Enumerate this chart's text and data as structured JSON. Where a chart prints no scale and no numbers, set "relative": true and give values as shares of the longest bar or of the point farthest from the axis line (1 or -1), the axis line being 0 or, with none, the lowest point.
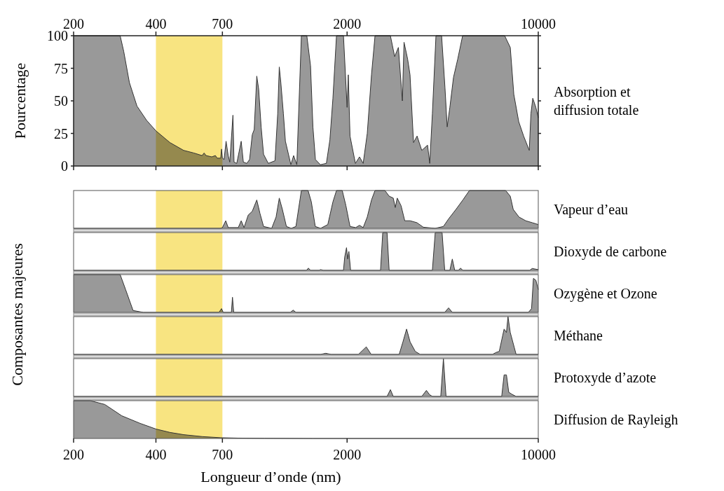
{
  "chart_data": [
    {
      "type": "area",
      "title": "Absorption et diffusion totale",
      "ylabel": "Pourcentage",
      "log": "x",
      "xlim": [
        200,
        10000
      ],
      "xticks": [
        200,
        400,
        700,
        2000,
        10000
      ],
      "ylim": [
        0,
        100
      ],
      "yticks": [
        0,
        25,
        50,
        75,
        100
      ],
      "bands": [
        {
          "axis": "x",
          "from": 400,
          "to": 700,
          "color": "#f5d63d"
        }
      ],
      "series": [
        {
          "color": "#999999",
          "x": [
            200,
            296,
            305,
            320,
            341,
            370,
            400,
            450,
            505,
            550,
            590,
            600,
            610,
            640,
            660,
            670,
            690,
            695,
            700,
            710,
            722,
            735,
            745,
            765,
            772,
            790,
            820,
            835,
            860,
            880,
            900,
            915,
            935,
            950,
            970,
            990,
            1030,
            1090,
            1115,
            1130,
            1145,
            1170,
            1190,
            1246,
            1275,
            1310,
            1361,
            1425,
            1470,
            1500,
            1532,
            1597,
            1680,
            1730,
            1775,
            1829,
            1940,
            2000,
            2020,
            2050,
            2145,
            2220,
            2290,
            2370,
            2456,
            2530,
            2880,
            2985,
            3080,
            3185,
            3230,
            3330,
            3397,
            3499,
            3605,
            3750,
            3938,
            4010,
            4100,
            4226,
            4432,
            4560,
            4645,
            4750,
            4898,
            5075,
            5289,
            7537,
            7900,
            8140,
            8484,
            8840,
            9270,
            9400,
            9548,
            9800,
            10000
          ],
          "values": [
            100,
            100,
            88,
            64,
            46,
            35,
            27,
            18,
            12,
            10,
            8,
            10,
            8,
            7,
            8,
            6,
            6,
            13,
            6,
            5,
            19,
            8,
            3,
            39,
            3,
            2,
            19,
            3,
            2,
            5,
            24,
            28,
            69,
            59,
            30,
            9,
            2,
            4,
            40,
            76,
            64,
            40,
            19,
            1,
            8,
            1,
            100,
            100,
            77,
            30,
            5,
            1,
            2,
            20,
            52,
            100,
            100,
            45,
            70,
            23,
            2,
            7,
            2,
            25,
            70,
            100,
            100,
            84,
            91,
            50,
            95,
            82,
            70,
            18,
            23,
            12,
            16,
            2,
            40,
            100,
            100,
            60,
            30,
            45,
            68,
            82,
            100,
            100,
            91,
            55,
            34,
            23,
            12,
            40,
            52,
            45,
            37
          ]
        }
      ]
    },
    {
      "type": "area",
      "ylabel": "Composantes majeures",
      "relative": true,
      "log": "x",
      "xlim": [
        200,
        10000
      ],
      "tick_labels": false,
      "bands": [
        {
          "axis": "x",
          "from": 400,
          "to": 700,
          "color": "#f5d63d"
        }
      ],
      "series": [
        {
          "name": "Vapeur d’eau",
          "color": "#999999",
          "x": [
            200,
            690,
            700,
            720,
            735,
            800,
            820,
            840,
            870,
            900,
            935,
            960,
            990,
            1060,
            1100,
            1130,
            1160,
            1200,
            1250,
            1300,
            1361,
            1440,
            1480,
            1530,
            1600,
            1700,
            1775,
            1829,
            1920,
            1980,
            2050,
            2150,
            2220,
            2290,
            2370,
            2456,
            2530,
            2750,
            2850,
            2950,
            3000,
            3050,
            3150,
            3250,
            3400,
            3600,
            3800,
            4200,
            4500,
            4700,
            5000,
            5300,
            5600,
            7600,
            7900,
            8100,
            8500,
            9000,
            9500,
            10000
          ],
          "values": [
            0,
            0,
            0.02,
            0.2,
            0.02,
            0.02,
            0.2,
            0.02,
            0.35,
            0.45,
            0.75,
            0.4,
            0.05,
            0,
            0.3,
            0.8,
            0.5,
            0.05,
            0,
            0.05,
            1,
            1,
            0.7,
            0.05,
            0,
            0.1,
            0.7,
            1,
            1,
            0.6,
            0.05,
            0.02,
            0.08,
            0.02,
            0.3,
            0.75,
            1,
            1,
            0.85,
            0.8,
            0.55,
            0.8,
            0.6,
            0.2,
            0.2,
            0.15,
            0.03,
            0,
            0.05,
            0.25,
            0.5,
            0.75,
            1,
            1,
            0.85,
            0.5,
            0.3,
            0.2,
            0.15,
            0.1
          ]
        }
      ]
    },
    {
      "type": "area",
      "relative": true,
      "log": "x",
      "xlim": [
        200,
        10000
      ],
      "tick_labels": false,
      "bands": [
        {
          "axis": "x",
          "from": 400,
          "to": 700,
          "color": "#f5d63d"
        }
      ],
      "series": [
        {
          "name": "Dioxyde de carbone",
          "color": "#999999",
          "x": [
            200,
            1420,
            1444,
            1470,
            1580,
            1600,
            1640,
            1940,
            1960,
            1990,
            2010,
            2030,
            2060,
            2650,
            2700,
            2800,
            2850,
            4100,
            4200,
            4450,
            4550,
            4750,
            4850,
            4950,
            5100,
            5200,
            5300,
            9300,
            9500,
            10000
          ],
          "values": [
            0,
            0,
            0.06,
            0,
            0,
            0.02,
            0,
            0,
            0.35,
            0.6,
            0.3,
            0.5,
            0,
            0,
            1,
            1,
            0,
            0,
            1,
            1,
            0,
            0,
            0.3,
            0,
            0,
            0.06,
            0,
            0,
            0.05,
            0.02
          ]
        }
      ]
    },
    {
      "type": "area",
      "relative": true,
      "log": "x",
      "xlim": [
        200,
        10000
      ],
      "tick_labels": false,
      "bands": [
        {
          "axis": "x",
          "from": 400,
          "to": 700,
          "color": "#f5d63d"
        }
      ],
      "series": [
        {
          "name": "Ozygène et Ozone",
          "color": "#999999",
          "x": [
            200,
            296,
            310,
            330,
            360,
            680,
            695,
            705,
            755,
            762,
            770,
            1240,
            1270,
            1300,
            4550,
            4700,
            4850,
            9200,
            9450,
            9600,
            9800,
            10000
          ],
          "values": [
            1,
            1,
            0.6,
            0.05,
            0,
            0,
            0.1,
            0,
            0,
            0.4,
            0,
            0,
            0.06,
            0,
            0,
            0.12,
            0,
            0,
            0.1,
            0.9,
            0.85,
            0.6
          ]
        }
      ]
    },
    {
      "type": "area",
      "relative": true,
      "log": "x",
      "xlim": [
        200,
        10000
      ],
      "tick_labels": false,
      "bands": [
        {
          "axis": "x",
          "from": 400,
          "to": 700,
          "color": "#f5d63d"
        }
      ],
      "series": [
        {
          "name": "Méthane",
          "color": "#999999",
          "x": [
            200,
            1600,
            1670,
            1750,
            2200,
            2350,
            2450,
            3100,
            3200,
            3300,
            3400,
            3550,
            3700,
            6800,
            7000,
            7200,
            7500,
            7650,
            7750,
            7900,
            8300,
            10000
          ],
          "values": [
            0,
            0,
            0.03,
            0,
            0,
            0.2,
            0,
            0,
            0.33,
            0.67,
            0.33,
            0.08,
            0,
            0,
            0.05,
            0.08,
            0.67,
            0.58,
            1,
            0.58,
            0,
            0
          ]
        }
      ]
    },
    {
      "type": "area",
      "relative": true,
      "log": "x",
      "xlim": [
        200,
        10000
      ],
      "tick_labels": false,
      "bands": [
        {
          "axis": "x",
          "from": 400,
          "to": 700,
          "color": "#f5d63d"
        }
      ],
      "series": [
        {
          "name": "Protoxyde d’azote",
          "color": "#999999",
          "x": [
            200,
            2800,
            2880,
            2950,
            3750,
            3900,
            4000,
            4100,
            4400,
            4500,
            4600,
            7350,
            7500,
            7650,
            7800,
            8000,
            8300,
            10000
          ],
          "values": [
            0,
            0,
            0.18,
            0,
            0,
            0.16,
            0.05,
            0,
            0,
            1,
            0,
            0,
            0.57,
            0.57,
            0.11,
            0.06,
            0,
            0
          ]
        }
      ]
    },
    {
      "type": "area",
      "title": "Diffusion de Rayleigh",
      "xlabel": "Longueur d’onde (nm)",
      "relative": true,
      "log": "x",
      "xlim": [
        200,
        10000
      ],
      "xticks": [
        200,
        400,
        700,
        2000,
        10000
      ],
      "tick_labels": "x",
      "bands": [
        {
          "axis": "x",
          "from": 400,
          "to": 700,
          "color": "#f5d63d"
        }
      ],
      "series": [
        {
          "color": "#999999",
          "x": [
            200,
            230,
            260,
            300,
            350,
            400,
            450,
            505,
            590,
            690,
            800,
            1000,
            1500,
            10000
          ],
          "values": [
            1,
            1,
            0.9,
            0.6,
            0.4,
            0.25,
            0.16,
            0.1,
            0.05,
            0.02,
            0.01,
            0.005,
            0,
            0
          ]
        }
      ]
    }
  ]
}
